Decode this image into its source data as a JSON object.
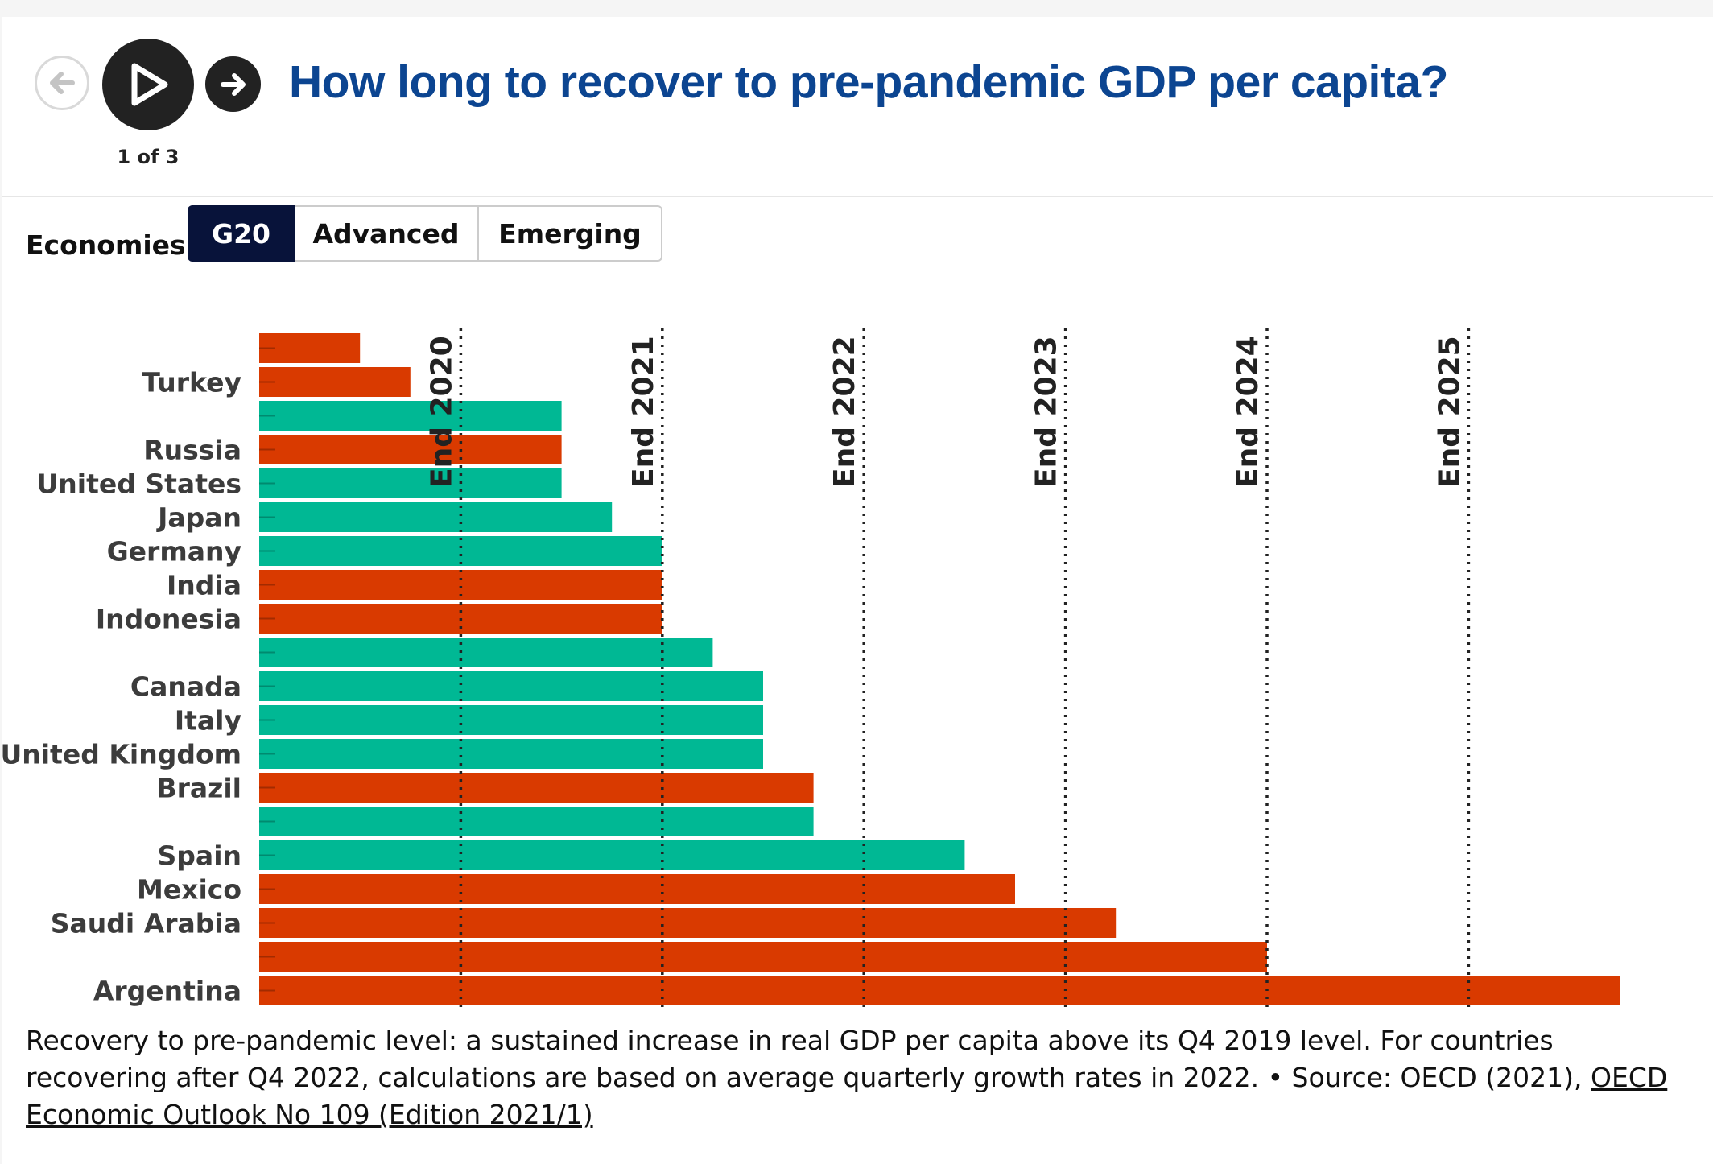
{
  "header": {
    "title": "How long to recover to pre-pandemic GDP per capita?",
    "step_counter": "1 of 3"
  },
  "controls": {
    "prev_icon": "arrow-left-icon",
    "play_icon": "play-icon",
    "next_icon": "arrow-right-icon",
    "economies_label": "Economies:",
    "toggles": [
      "G20",
      "Advanced",
      "Emerging"
    ],
    "selected": "G20"
  },
  "colors": {
    "emerging": "#d93a00",
    "advanced": "#00b894",
    "title": "#0c4591",
    "selected_toggle": "#08133a"
  },
  "chart_data": {
    "type": "bar",
    "orientation": "horizontal",
    "x_unit": "quarters after Q4 2019",
    "xlim": [
      0,
      27
    ],
    "reference_lines": [
      {
        "label": "End 2020",
        "x": 4
      },
      {
        "label": "End 2021",
        "x": 8
      },
      {
        "label": "End 2022",
        "x": 12
      },
      {
        "label": "End 2023",
        "x": 16
      },
      {
        "label": "End 2024",
        "x": 20
      },
      {
        "label": "End 2025",
        "x": 24
      }
    ],
    "bars": [
      {
        "label": "",
        "value": 2,
        "group": "emerging"
      },
      {
        "label": "Turkey",
        "value": 3,
        "group": "emerging"
      },
      {
        "label": "",
        "value": 6,
        "group": "advanced"
      },
      {
        "label": "Russia",
        "value": 6,
        "group": "emerging"
      },
      {
        "label": "United States",
        "value": 6,
        "group": "advanced"
      },
      {
        "label": "Japan",
        "value": 7,
        "group": "advanced"
      },
      {
        "label": "Germany",
        "value": 8,
        "group": "advanced"
      },
      {
        "label": "India",
        "value": 8,
        "group": "emerging"
      },
      {
        "label": "Indonesia",
        "value": 8,
        "group": "emerging"
      },
      {
        "label": "",
        "value": 9,
        "group": "advanced"
      },
      {
        "label": "Canada",
        "value": 10,
        "group": "advanced"
      },
      {
        "label": "Italy",
        "value": 10,
        "group": "advanced"
      },
      {
        "label": "United Kingdom",
        "value": 10,
        "group": "advanced"
      },
      {
        "label": "Brazil",
        "value": 11,
        "group": "emerging"
      },
      {
        "label": "",
        "value": 11,
        "group": "advanced"
      },
      {
        "label": "Spain",
        "value": 14,
        "group": "advanced"
      },
      {
        "label": "Mexico",
        "value": 15,
        "group": "emerging"
      },
      {
        "label": "Saudi Arabia",
        "value": 17,
        "group": "emerging"
      },
      {
        "label": "",
        "value": 20,
        "group": "emerging"
      },
      {
        "label": "Argentina",
        "value": 27,
        "group": "emerging"
      }
    ]
  },
  "footnote": {
    "text": "Recovery to pre-pandemic level: a sustained increase in real GDP per capita above its Q4 2019 level. For countries recovering after Q4 2022, calculations are based on average quarterly growth rates in 2022. • Source: OECD (2021), ",
    "link_text": "OECD Economic Outlook No 109 (Edition 2021/1)"
  }
}
